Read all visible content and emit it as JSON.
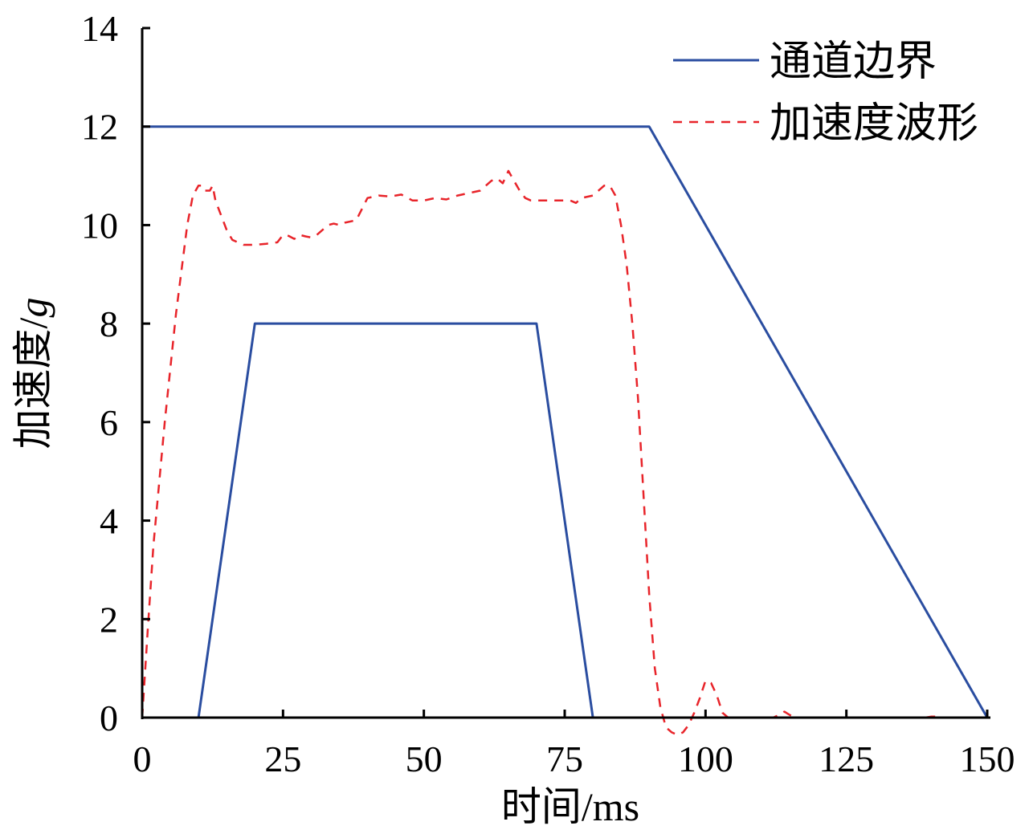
{
  "chart_data": {
    "type": "line",
    "title": "",
    "xlabel": "时间/ms",
    "ylabel_main": "加速度/",
    "ylabel_unit": "g",
    "xlim": [
      0,
      150
    ],
    "ylim": [
      0,
      14
    ],
    "xticks": [
      0,
      25,
      50,
      75,
      100,
      125,
      150
    ],
    "yticks": [
      0,
      2,
      4,
      6,
      8,
      10,
      12,
      14
    ],
    "grid": false,
    "legend_position": "top-right",
    "series": [
      {
        "name": "通道边界",
        "style": "solid",
        "color": "#2a4da0",
        "segments": [
          {
            "x": [
              0,
              90,
              150
            ],
            "y": [
              12,
              12,
              0
            ]
          },
          {
            "x": [
              0,
              10,
              20,
              70,
              80,
              150
            ],
            "y": [
              0,
              0,
              8,
              8,
              0,
              0
            ]
          }
        ]
      },
      {
        "name": "加速度波形",
        "style": "dashed",
        "color": "#e8242a",
        "segments": [
          {
            "x": [
              0,
              1,
              2,
              4,
              6,
              8,
              9,
              10,
              10.5,
              11,
              12,
              12.5,
              13,
              14,
              15,
              16,
              17,
              18,
              20,
              22,
              24,
              25,
              26,
              27,
              28,
              29,
              30,
              31,
              33,
              34,
              35,
              36,
              38,
              40,
              42,
              44,
              46,
              48,
              50,
              52,
              54,
              56,
              58,
              60,
              61,
              62,
              63,
              64,
              65,
              66,
              67,
              68,
              69,
              70,
              72,
              74,
              76,
              77,
              78,
              80,
              82,
              83,
              84,
              85,
              86,
              87,
              88,
              89,
              90,
              91,
              92,
              93,
              94,
              95,
              96,
              97,
              98,
              99,
              100,
              101,
              102,
              103,
              104,
              105,
              110,
              112,
              113,
              114,
              115,
              116,
              118,
              120,
              125,
              130,
              135,
              138,
              139,
              140,
              141,
              142,
              145,
              150
            ],
            "y": [
              0,
              1.8,
              3.5,
              6.0,
              8.2,
              10.0,
              10.6,
              10.8,
              10.8,
              10.7,
              10.7,
              10.8,
              10.5,
              10.2,
              9.9,
              9.7,
              9.65,
              9.6,
              9.6,
              9.62,
              9.65,
              9.8,
              9.78,
              9.72,
              9.8,
              9.77,
              9.75,
              9.8,
              10.0,
              10.03,
              10.0,
              10.05,
              10.1,
              10.55,
              10.6,
              10.58,
              10.62,
              10.5,
              10.5,
              10.55,
              10.52,
              10.6,
              10.65,
              10.7,
              10.8,
              10.9,
              10.95,
              10.85,
              11.1,
              10.9,
              10.7,
              10.55,
              10.5,
              10.5,
              10.5,
              10.5,
              10.5,
              10.45,
              10.55,
              10.6,
              10.8,
              10.8,
              10.6,
              10.0,
              9.2,
              8.0,
              6.5,
              4.5,
              2.5,
              1.0,
              0.2,
              -0.2,
              -0.3,
              -0.35,
              -0.3,
              -0.15,
              0.1,
              0.4,
              0.75,
              0.7,
              0.45,
              0.1,
              0,
              0,
              0,
              0,
              0.05,
              0.12,
              0.05,
              0,
              0,
              0,
              0,
              0,
              0,
              0,
              0,
              0.02,
              0.02,
              0,
              0,
              0
            ]
          }
        ]
      }
    ]
  }
}
